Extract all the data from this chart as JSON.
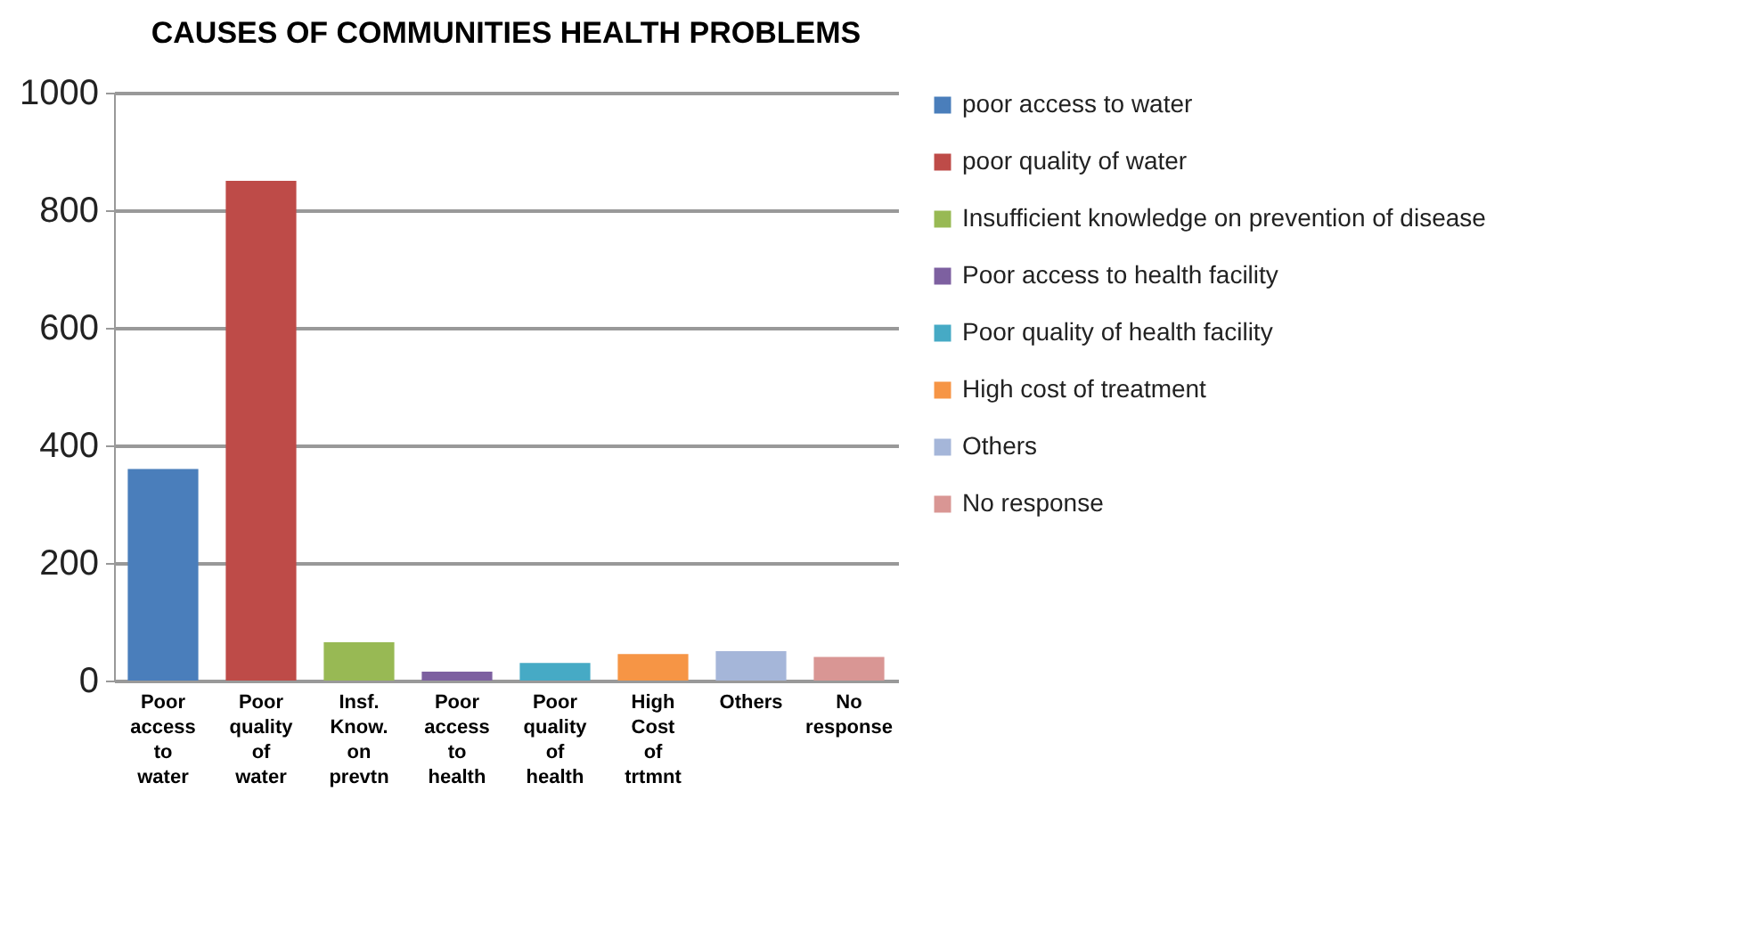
{
  "chart_data": {
    "type": "bar",
    "title": "CAUSES OF COMMUNITIES  HEALTH PROBLEMS",
    "categories": [
      "Poor access to water",
      "Poor quality of water",
      "Insf. Know. on prevtn",
      "Poor access to health",
      "Poor quality of health",
      "High Cost of trtmnt",
      "Others",
      "No response"
    ],
    "series": [
      {
        "name": "poor access to water",
        "color": "#4a7ebb",
        "values": [
          360,
          null,
          null,
          null,
          null,
          null,
          null,
          null
        ]
      },
      {
        "name": "poor quality of water",
        "color": "#be4b48",
        "values": [
          null,
          850,
          null,
          null,
          null,
          null,
          null,
          null
        ]
      },
      {
        "name": "Insufficient knowledge on prevention of disease",
        "color": "#98b954",
        "values": [
          null,
          null,
          65,
          null,
          null,
          null,
          null,
          null
        ]
      },
      {
        "name": "Poor access to health facility",
        "color": "#7d60a0",
        "values": [
          null,
          null,
          null,
          15,
          null,
          null,
          null,
          null
        ]
      },
      {
        "name": "Poor quality of health facility",
        "color": "#46aac5",
        "values": [
          null,
          null,
          null,
          null,
          30,
          null,
          null,
          null
        ]
      },
      {
        "name": "High cost of treatment",
        "color": "#f69545",
        "values": [
          null,
          null,
          null,
          null,
          null,
          45,
          null,
          null
        ]
      },
      {
        "name": "Others",
        "color": "#a5b6d9",
        "values": [
          null,
          null,
          null,
          null,
          null,
          null,
          50,
          null
        ]
      },
      {
        "name": "No response",
        "color": "#d99694",
        "values": [
          null,
          null,
          null,
          null,
          null,
          null,
          null,
          40
        ]
      }
    ],
    "ylim": [
      0,
      1000
    ],
    "yticks": [
      0,
      200,
      400,
      600,
      800,
      1000
    ],
    "grid": "y",
    "legend": "right"
  }
}
